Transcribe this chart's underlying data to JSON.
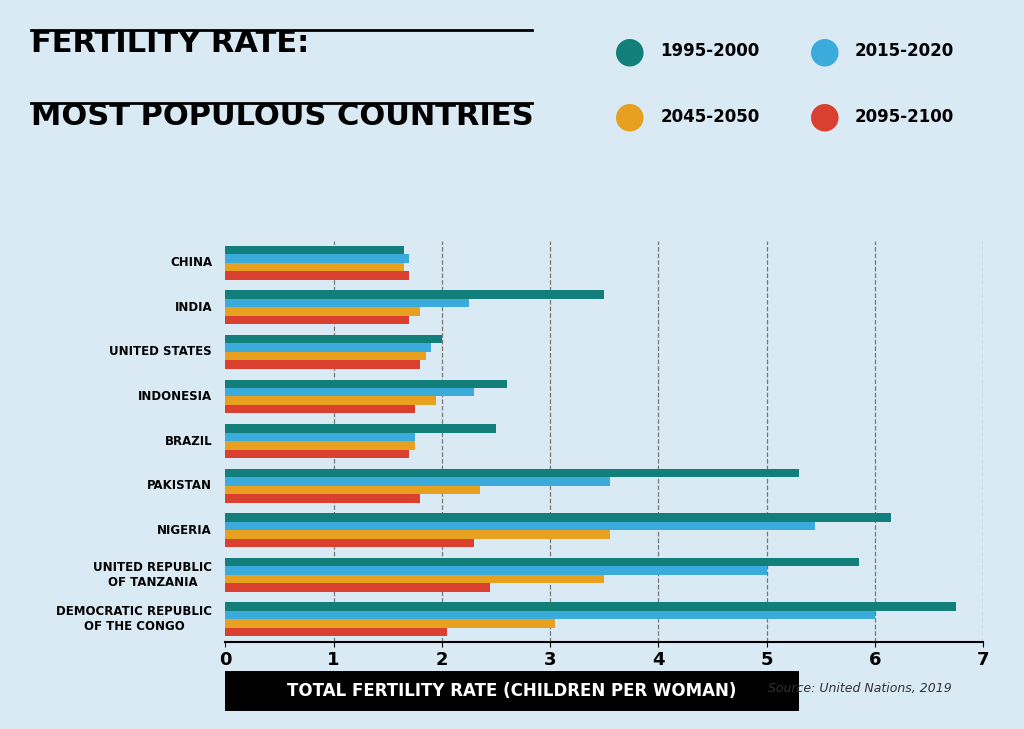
{
  "countries": [
    "CHINA",
    "INDIA",
    "UNITED STATES",
    "INDONESIA",
    "BRAZIL",
    "PAKISTAN",
    "NIGERIA",
    "UNITED REPUBLIC\nOF TANZANIA",
    "DEMOCRATIC REPUBLIC\nOF THE CONGO"
  ],
  "series": {
    "1995-2000": [
      1.65,
      3.5,
      2.0,
      2.6,
      2.5,
      5.3,
      6.15,
      5.85,
      6.75
    ],
    "2015-2020": [
      1.7,
      2.25,
      1.9,
      2.3,
      1.75,
      3.55,
      5.45,
      5.0,
      6.0
    ],
    "2045-2050": [
      1.65,
      1.8,
      1.85,
      1.95,
      1.75,
      2.35,
      3.55,
      3.5,
      3.05
    ],
    "2095-2100": [
      1.7,
      1.7,
      1.8,
      1.75,
      1.7,
      1.8,
      2.3,
      2.45,
      2.05
    ]
  },
  "colors": {
    "1995-2000": "#127f7a",
    "2015-2020": "#3aabdb",
    "2045-2050": "#e8a020",
    "2095-2100": "#d94030"
  },
  "legend_order": [
    "1995-2000",
    "2015-2020",
    "2045-2050",
    "2095-2100"
  ],
  "title_line1": "FERTILITY RATE:",
  "title_line2": "MOST POPULOUS COUNTRIES",
  "xlabel": "TOTAL FERTILITY RATE (CHILDREN PER WOMAN)",
  "source": "Source: United Nations, 2019",
  "xlim": [
    0,
    7
  ],
  "xticks": [
    0,
    1,
    2,
    3,
    4,
    5,
    6,
    7
  ],
  "background_color": "#daeaf5"
}
